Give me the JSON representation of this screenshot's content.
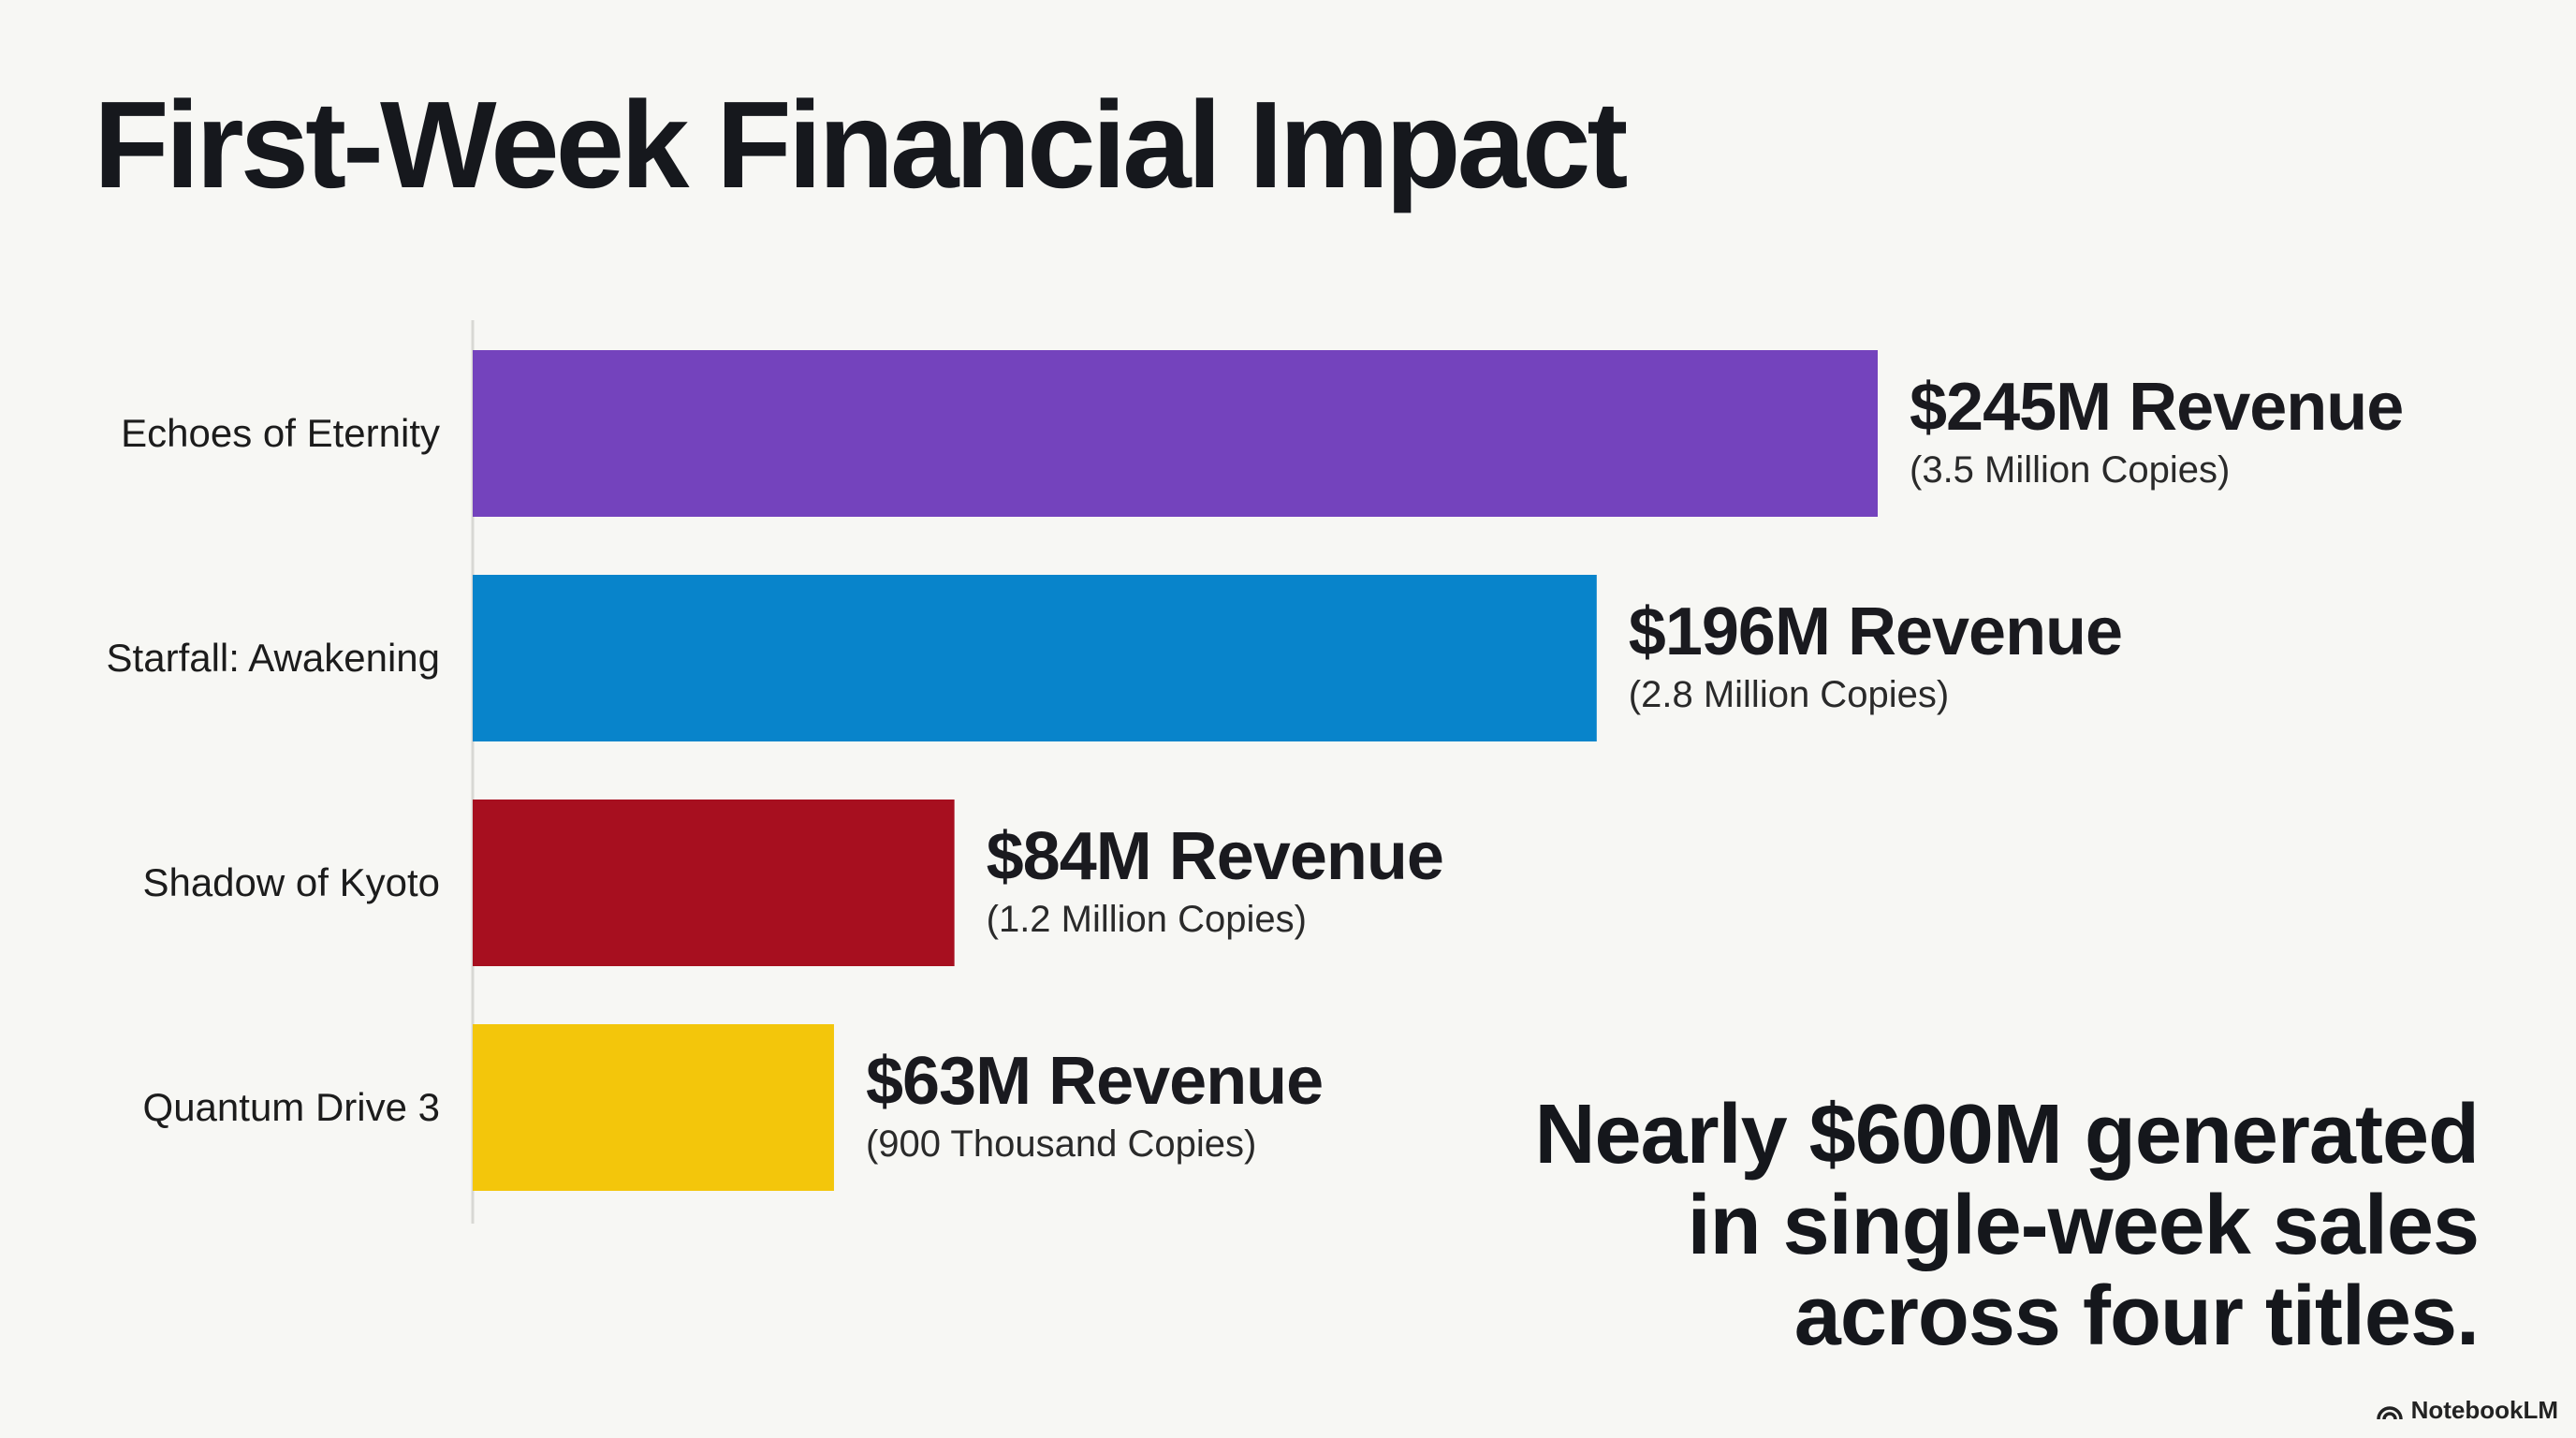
{
  "chart_data": {
    "type": "bar",
    "orientation": "horizontal",
    "title": "First-Week Financial Impact",
    "categories": [
      "Echoes of Eternity",
      "Starfall: Awakening",
      "Shadow of Kyoto",
      "Quantum Drive 3"
    ],
    "values": [
      245,
      196,
      84,
      63
    ],
    "value_labels": [
      "$245M Revenue",
      "$196M Revenue",
      "$84M Revenue",
      "$63M Revenue"
    ],
    "secondary_labels": [
      "(3.5 Million Copies)",
      "(2.8 Million Copies)",
      "(1.2 Million Copies)",
      "(900 Thousand Copies)"
    ],
    "colors": [
      "#7443bd",
      "#0884cb",
      "#a70f1f",
      "#f3c60b"
    ],
    "annotation": [
      "Nearly $600M generated",
      "in single-week sales",
      "across four titles."
    ],
    "footer": "NotebookLM"
  }
}
